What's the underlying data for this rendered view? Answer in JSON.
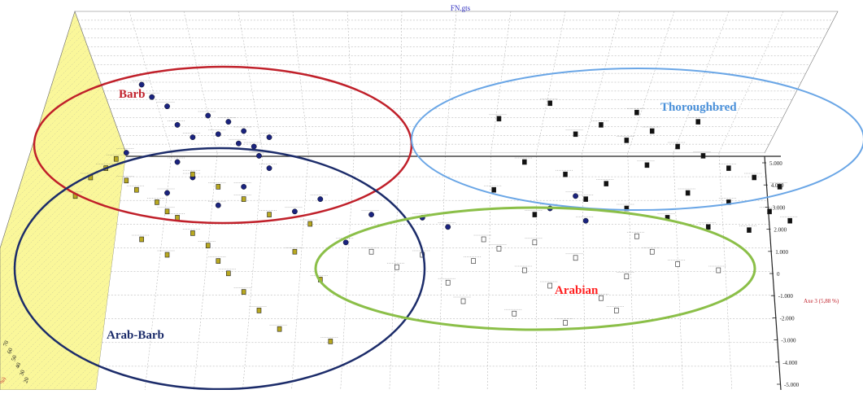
{
  "chart_data": {
    "type": "scatter",
    "subtype": "3d-factorial-scatter",
    "title": "FN.gts",
    "xlabel": "",
    "ylabel": "",
    "zlabel": "Axe 3 (5,88 %)",
    "left_axis_label": "%)",
    "z_ticks": [
      "5.000",
      "4.000",
      "3.000",
      "2.000",
      "1.000",
      "0",
      "-1.000",
      "-2.000",
      "-3.000",
      "-4.000",
      "-5.000"
    ],
    "left_ticks": [
      "70",
      "60",
      "50",
      "40",
      "30",
      "20"
    ],
    "grid": true,
    "groups": [
      {
        "name": "Barb",
        "color": "#c0202a",
        "ellipse": true
      },
      {
        "name": "Thoroughbred",
        "color": "#4a90d9",
        "ellipse": true
      },
      {
        "name": "Arab-Barb",
        "color": "#1c2c6a",
        "ellipse": true
      },
      {
        "name": "Arabian",
        "color": "#ff2020",
        "ellipse_color": "#8bbf48",
        "ellipse": true
      }
    ],
    "series": [
      {
        "marker_color": "#1a237e",
        "points": [
          [
            -0.25,
            4.5
          ],
          [
            -0.23,
            4.1
          ],
          [
            -0.2,
            3.8
          ],
          [
            -0.18,
            3.2
          ],
          [
            -0.15,
            2.8
          ],
          [
            -0.12,
            3.5
          ],
          [
            -0.1,
            2.9
          ],
          [
            -0.08,
            3.3
          ],
          [
            -0.06,
            2.6
          ],
          [
            -0.05,
            3.0
          ],
          [
            -0.03,
            2.5
          ],
          [
            -0.02,
            2.2
          ],
          [
            0.0,
            2.8
          ],
          [
            -0.2,
            1.0
          ],
          [
            -0.18,
            2.0
          ],
          [
            -0.15,
            1.5
          ],
          [
            -0.1,
            0.6
          ],
          [
            -0.05,
            1.2
          ],
          [
            0.0,
            1.8
          ],
          [
            0.05,
            0.4
          ],
          [
            0.1,
            0.8
          ],
          [
            0.15,
            -0.6
          ],
          [
            0.2,
            0.3
          ],
          [
            0.3,
            0.2
          ],
          [
            0.35,
            -0.1
          ],
          [
            0.55,
            0.5
          ],
          [
            0.6,
            0.9
          ],
          [
            0.62,
            0.1
          ],
          [
            -0.28,
            2.3
          ]
        ]
      },
      {
        "marker_color": "#b8a820",
        "points": [
          [
            -0.3,
            2.1
          ],
          [
            -0.32,
            1.8
          ],
          [
            -0.28,
            1.4
          ],
          [
            -0.26,
            1.1
          ],
          [
            -0.22,
            0.7
          ],
          [
            -0.2,
            0.4
          ],
          [
            -0.18,
            0.2
          ],
          [
            -0.15,
            -0.3
          ],
          [
            -0.12,
            -0.7
          ],
          [
            -0.1,
            -1.2
          ],
          [
            -0.08,
            -1.6
          ],
          [
            -0.05,
            -2.2
          ],
          [
            -0.02,
            -2.8
          ],
          [
            0.02,
            -3.4
          ],
          [
            -0.25,
            -0.5
          ],
          [
            -0.2,
            -1.0
          ],
          [
            -0.15,
            1.6
          ],
          [
            -0.1,
            1.2
          ],
          [
            -0.05,
            0.8
          ],
          [
            0.0,
            0.3
          ],
          [
            -0.35,
            1.5
          ],
          [
            -0.38,
            0.9
          ],
          [
            0.12,
            -3.8
          ],
          [
            0.1,
            -1.8
          ],
          [
            0.08,
            0.0
          ],
          [
            0.05,
            -0.9
          ]
        ]
      },
      {
        "marker_color": "#555555",
        "points": [
          [
            0.2,
            -0.9
          ],
          [
            0.25,
            -1.4
          ],
          [
            0.3,
            -1.0
          ],
          [
            0.35,
            -1.9
          ],
          [
            0.4,
            -1.2
          ],
          [
            0.45,
            -0.8
          ],
          [
            0.5,
            -1.5
          ],
          [
            0.55,
            -2.0
          ],
          [
            0.6,
            -1.1
          ],
          [
            0.65,
            -2.4
          ],
          [
            0.7,
            -1.7
          ],
          [
            0.75,
            -0.9
          ],
          [
            0.8,
            -1.3
          ],
          [
            0.38,
            -2.5
          ],
          [
            0.48,
            -2.9
          ],
          [
            0.58,
            -3.2
          ],
          [
            0.68,
            -2.8
          ],
          [
            0.42,
            -0.5
          ],
          [
            0.52,
            -0.6
          ],
          [
            0.72,
            -0.4
          ],
          [
            0.88,
            -1.5
          ]
        ]
      },
      {
        "marker_color": "#111111",
        "points": [
          [
            0.45,
            3.4
          ],
          [
            0.55,
            3.9
          ],
          [
            0.6,
            2.9
          ],
          [
            0.65,
            3.2
          ],
          [
            0.7,
            2.7
          ],
          [
            0.75,
            3.0
          ],
          [
            0.8,
            2.5
          ],
          [
            0.85,
            2.2
          ],
          [
            0.9,
            1.8
          ],
          [
            0.95,
            1.5
          ],
          [
            1.0,
            1.2
          ],
          [
            0.5,
            2.0
          ],
          [
            0.58,
            1.6
          ],
          [
            0.66,
            1.3
          ],
          [
            0.74,
            1.9
          ],
          [
            0.82,
            1.0
          ],
          [
            0.9,
            0.7
          ],
          [
            0.98,
            0.4
          ],
          [
            0.62,
            0.8
          ],
          [
            0.7,
            0.5
          ],
          [
            0.78,
            0.2
          ],
          [
            0.86,
            -0.1
          ],
          [
            0.94,
            -0.2
          ],
          [
            1.02,
            0.1
          ],
          [
            0.52,
            0.3
          ],
          [
            0.44,
            1.1
          ],
          [
            0.84,
            3.3
          ],
          [
            0.72,
            3.6
          ]
        ]
      }
    ]
  }
}
